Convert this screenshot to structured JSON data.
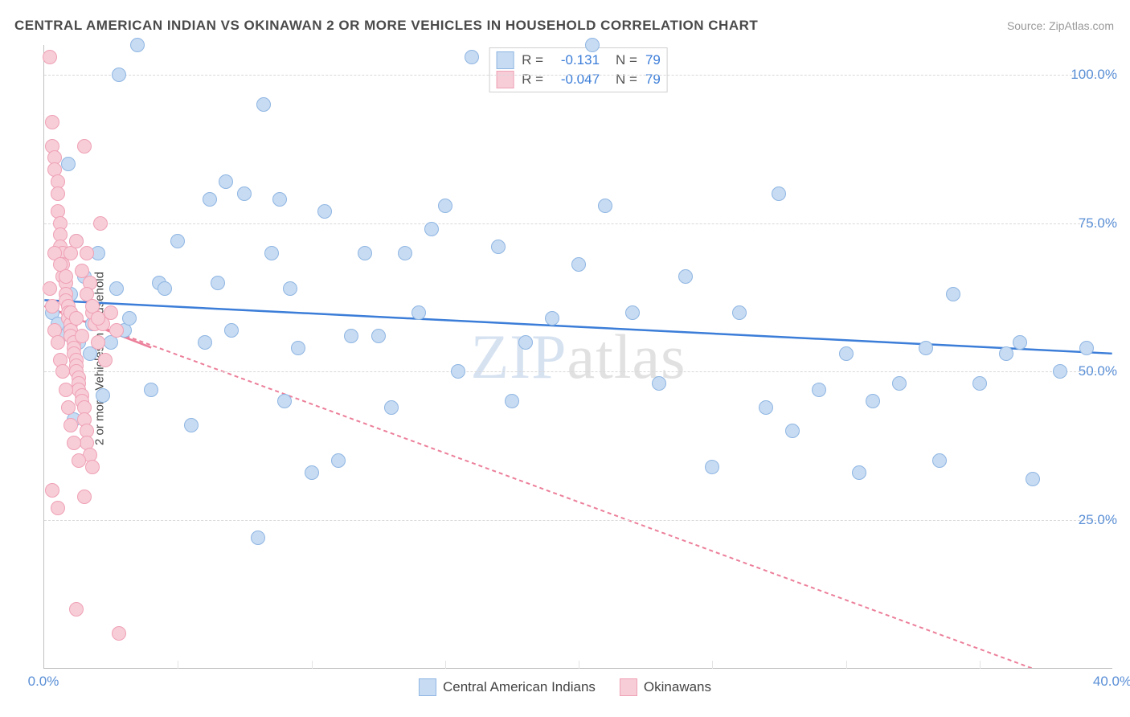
{
  "title": "CENTRAL AMERICAN INDIAN VS OKINAWAN 2 OR MORE VEHICLES IN HOUSEHOLD CORRELATION CHART",
  "source": "Source: ZipAtlas.com",
  "ylabel": "2 or more Vehicles in Household",
  "watermark_zip": "ZIP",
  "watermark_atlas": "atlas",
  "chart": {
    "type": "scatter",
    "xlim": [
      0,
      40
    ],
    "ylim": [
      0,
      105
    ],
    "xtick_positions": [
      0,
      40
    ],
    "xtick_labels": [
      "0.0%",
      "40.0%"
    ],
    "ytick_positions": [
      25,
      50,
      75,
      100
    ],
    "ytick_labels": [
      "25.0%",
      "50.0%",
      "75.0%",
      "100.0%"
    ],
    "grid_h": [
      25,
      50,
      75,
      100
    ],
    "grid_v": [
      5,
      10,
      15,
      20,
      25,
      30,
      35
    ],
    "background_color": "#ffffff",
    "grid_color": "#d9d9d9",
    "axis_color": "#c0c0c0",
    "marker_radius": 9,
    "series": [
      {
        "name": "Central American Indians",
        "R": "-0.131",
        "N": "79",
        "marker_fill": "#c7dbf2",
        "marker_stroke": "#8fb6e3",
        "line_color": "#3b7dd8",
        "line_width": 2.5,
        "line_dash": "none",
        "trend": {
          "x1": 0,
          "y1": 62,
          "x2": 40,
          "y2": 53
        },
        "points": [
          [
            0.3,
            60
          ],
          [
            0.5,
            58
          ],
          [
            0.6,
            56
          ],
          [
            0.9,
            85
          ],
          [
            1.0,
            63
          ],
          [
            1.1,
            42
          ],
          [
            1.2,
            72
          ],
          [
            1.3,
            55
          ],
          [
            1.5,
            66
          ],
          [
            1.7,
            53
          ],
          [
            1.8,
            58
          ],
          [
            2.0,
            70
          ],
          [
            2.2,
            46
          ],
          [
            2.5,
            55
          ],
          [
            2.7,
            64
          ],
          [
            3.0,
            57
          ],
          [
            3.2,
            59
          ],
          [
            3.5,
            105
          ],
          [
            4.0,
            47
          ],
          [
            4.3,
            65
          ],
          [
            4.5,
            64
          ],
          [
            5.0,
            72
          ],
          [
            5.5,
            41
          ],
          [
            6.0,
            55
          ],
          [
            6.2,
            79
          ],
          [
            6.5,
            65
          ],
          [
            7.0,
            57
          ],
          [
            7.5,
            80
          ],
          [
            8.0,
            22
          ],
          [
            8.2,
            95
          ],
          [
            8.5,
            70
          ],
          [
            8.8,
            79
          ],
          [
            9.0,
            45
          ],
          [
            9.2,
            64
          ],
          [
            9.5,
            54
          ],
          [
            10.0,
            33
          ],
          [
            10.5,
            77
          ],
          [
            11.0,
            35
          ],
          [
            12.0,
            70
          ],
          [
            12.5,
            56
          ],
          [
            13.0,
            44
          ],
          [
            13.5,
            70
          ],
          [
            14.0,
            60
          ],
          [
            14.5,
            74
          ],
          [
            15.0,
            78
          ],
          [
            15.5,
            50
          ],
          [
            16.0,
            103
          ],
          [
            17.0,
            71
          ],
          [
            17.5,
            45
          ],
          [
            18.0,
            55
          ],
          [
            19.0,
            59
          ],
          [
            20.0,
            68
          ],
          [
            20.5,
            105
          ],
          [
            21.0,
            78
          ],
          [
            22.0,
            60
          ],
          [
            23.0,
            48
          ],
          [
            24.0,
            66
          ],
          [
            25.0,
            34
          ],
          [
            26.0,
            60
          ],
          [
            27.0,
            44
          ],
          [
            27.5,
            80
          ],
          [
            28.0,
            40
          ],
          [
            29.0,
            47
          ],
          [
            30.0,
            53
          ],
          [
            30.5,
            33
          ],
          [
            31.0,
            45
          ],
          [
            32.0,
            48
          ],
          [
            33.0,
            54
          ],
          [
            33.5,
            35
          ],
          [
            34.0,
            63
          ],
          [
            35.0,
            48
          ],
          [
            36.0,
            53
          ],
          [
            36.5,
            55
          ],
          [
            37.0,
            32
          ],
          [
            38.0,
            50
          ],
          [
            39.0,
            54
          ],
          [
            2.8,
            100
          ],
          [
            6.8,
            82
          ],
          [
            11.5,
            56
          ]
        ]
      },
      {
        "name": "Okinawans",
        "R": "-0.047",
        "N": "79",
        "marker_fill": "#f7cdd8",
        "marker_stroke": "#efa1b5",
        "line_color": "#ec7f9a",
        "line_width": 2,
        "line_dash": "5,4",
        "trend": {
          "x1": 0,
          "y1": 61,
          "x2": 40,
          "y2": -5
        },
        "points": [
          [
            0.2,
            103
          ],
          [
            0.3,
            92
          ],
          [
            0.3,
            88
          ],
          [
            0.4,
            86
          ],
          [
            0.4,
            84
          ],
          [
            0.5,
            82
          ],
          [
            0.5,
            80
          ],
          [
            0.5,
            77
          ],
          [
            0.6,
            75
          ],
          [
            0.6,
            73
          ],
          [
            0.6,
            71
          ],
          [
            0.7,
            70
          ],
          [
            0.7,
            68
          ],
          [
            0.7,
            66
          ],
          [
            0.8,
            65
          ],
          [
            0.8,
            63
          ],
          [
            0.8,
            62
          ],
          [
            0.9,
            61
          ],
          [
            0.9,
            60
          ],
          [
            0.9,
            59
          ],
          [
            1.0,
            58
          ],
          [
            1.0,
            57
          ],
          [
            1.0,
            56
          ],
          [
            1.1,
            55
          ],
          [
            1.1,
            54
          ],
          [
            1.1,
            53
          ],
          [
            1.2,
            52
          ],
          [
            1.2,
            51
          ],
          [
            1.2,
            50
          ],
          [
            1.3,
            49
          ],
          [
            1.3,
            48
          ],
          [
            1.3,
            47
          ],
          [
            1.4,
            46
          ],
          [
            1.4,
            45
          ],
          [
            1.5,
            44
          ],
          [
            1.5,
            42
          ],
          [
            1.6,
            40
          ],
          [
            1.6,
            38
          ],
          [
            1.7,
            36
          ],
          [
            1.8,
            34
          ],
          [
            0.2,
            64
          ],
          [
            0.3,
            61
          ],
          [
            0.4,
            57
          ],
          [
            0.5,
            55
          ],
          [
            0.6,
            52
          ],
          [
            0.7,
            50
          ],
          [
            0.8,
            47
          ],
          [
            0.9,
            44
          ],
          [
            1.0,
            41
          ],
          [
            1.1,
            38
          ],
          [
            1.3,
            35
          ],
          [
            0.4,
            70
          ],
          [
            0.6,
            68
          ],
          [
            0.8,
            66
          ],
          [
            1.0,
            60
          ],
          [
            1.2,
            59
          ],
          [
            1.4,
            56
          ],
          [
            1.5,
            88
          ],
          [
            1.6,
            70
          ],
          [
            1.7,
            65
          ],
          [
            1.8,
            60
          ],
          [
            1.9,
            58
          ],
          [
            2.0,
            55
          ],
          [
            2.1,
            75
          ],
          [
            2.2,
            58
          ],
          [
            2.3,
            52
          ],
          [
            2.5,
            60
          ],
          [
            2.7,
            57
          ],
          [
            1.5,
            29
          ],
          [
            1.2,
            10
          ],
          [
            2.8,
            6
          ],
          [
            0.3,
            30
          ],
          [
            0.5,
            27
          ],
          [
            1.0,
            70
          ],
          [
            1.2,
            72
          ],
          [
            1.4,
            67
          ],
          [
            1.6,
            63
          ],
          [
            1.8,
            61
          ],
          [
            2.0,
            59
          ]
        ]
      }
    ]
  },
  "legend_top": {
    "r_label": "R =",
    "n_label": "N ="
  },
  "legend_bottom": [
    {
      "label": "Central American Indians",
      "fill": "#c7dbf2",
      "stroke": "#8fb6e3"
    },
    {
      "label": "Okinawans",
      "fill": "#f7cdd8",
      "stroke": "#efa1b5"
    }
  ],
  "colors": {
    "stat_value": "#3b7dd8",
    "stat_label": "#555555"
  }
}
